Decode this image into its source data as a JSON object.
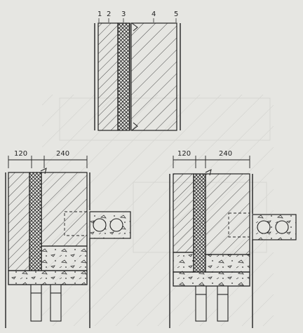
{
  "top_section": {
    "layer_labels": [
      "1",
      "2",
      "3",
      "4",
      "5"
    ]
  },
  "left_section": {
    "dim_left": "120",
    "dim_right": "240"
  },
  "right_section": {
    "dim_left": "120",
    "dim_right": "240"
  },
  "colors": {
    "paper": "#e6e6e2",
    "ink": "#222222"
  }
}
